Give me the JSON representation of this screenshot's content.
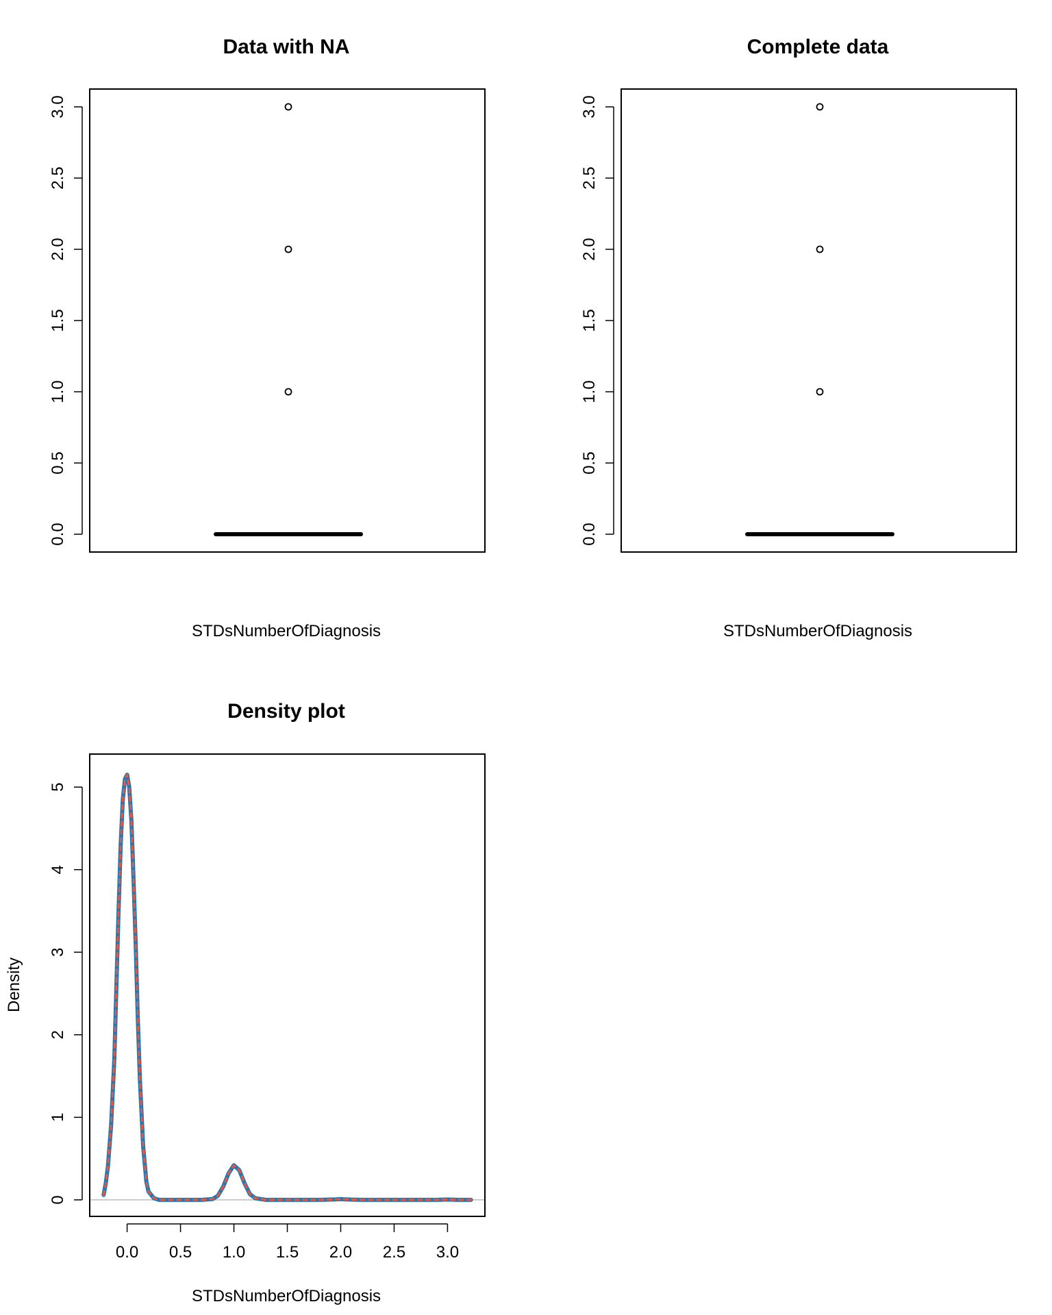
{
  "chart_data": [
    {
      "type": "box",
      "title": "Data with NA",
      "xlabel": "STDsNumberOfDiagnosis",
      "ylabel": "",
      "ylim": [
        0,
        3.12
      ],
      "yticks": [
        0,
        0.5,
        1.0,
        1.5,
        2.0,
        2.5,
        3.0
      ],
      "ytick_labels": [
        "0.0",
        "0.5",
        "1.0",
        "1.5",
        "2.0",
        "2.5",
        "3.0"
      ],
      "median": 0,
      "q1": 0,
      "q3": 0,
      "whisker_low": 0,
      "whisker_high": 0,
      "outliers": [
        1,
        2,
        3
      ]
    },
    {
      "type": "box",
      "title": "Complete data",
      "xlabel": "STDsNumberOfDiagnosis",
      "ylabel": "",
      "ylim": [
        0,
        3.12
      ],
      "yticks": [
        0,
        0.5,
        1.0,
        1.5,
        2.0,
        2.5,
        3.0
      ],
      "ytick_labels": [
        "0.0",
        "0.5",
        "1.0",
        "1.5",
        "2.0",
        "2.5",
        "3.0"
      ],
      "median": 0,
      "q1": 0,
      "q3": 0,
      "whisker_low": 0,
      "whisker_high": 0,
      "outliers": [
        1,
        2,
        3
      ]
    },
    {
      "type": "line",
      "title": "Density plot",
      "xlabel": "STDsNumberOfDiagnosis",
      "ylabel": "Density",
      "xlim": [
        -0.35,
        3.35
      ],
      "ylim": [
        -0.2,
        5.4
      ],
      "xticks": [
        0,
        0.5,
        1.0,
        1.5,
        2.0,
        2.5,
        3.0
      ],
      "xtick_labels": [
        "0.0",
        "0.5",
        "1.0",
        "1.5",
        "2.0",
        "2.5",
        "3.0"
      ],
      "yticks": [
        0,
        1,
        2,
        3,
        4,
        5
      ],
      "ytick_labels": [
        "0",
        "1",
        "2",
        "3",
        "4",
        "5"
      ],
      "series": [
        {
          "color": "#1f77b4",
          "style": "solid",
          "x": [
            -0.22,
            -0.2,
            -0.18,
            -0.15,
            -0.12,
            -0.1,
            -0.08,
            -0.06,
            -0.04,
            -0.02,
            0.0,
            0.02,
            0.04,
            0.06,
            0.08,
            0.1,
            0.12,
            0.15,
            0.18,
            0.2,
            0.25,
            0.3,
            0.5,
            0.7,
            0.8,
            0.85,
            0.9,
            0.95,
            1.0,
            1.05,
            1.1,
            1.15,
            1.2,
            1.3,
            1.5,
            1.8,
            1.95,
            2.0,
            2.05,
            2.2,
            2.5,
            2.9,
            3.0,
            3.1,
            3.22
          ],
          "y": [
            0.06,
            0.2,
            0.4,
            0.9,
            1.7,
            2.6,
            3.5,
            4.3,
            4.85,
            5.1,
            5.15,
            5.0,
            4.6,
            3.9,
            3.1,
            2.2,
            1.45,
            0.65,
            0.22,
            0.1,
            0.02,
            0.0,
            0.0,
            0.0,
            0.01,
            0.05,
            0.16,
            0.32,
            0.42,
            0.36,
            0.2,
            0.07,
            0.02,
            0.0,
            0.0,
            0.0,
            0.005,
            0.01,
            0.005,
            0.0,
            0.0,
            0.0,
            0.004,
            0.0,
            0.0
          ]
        },
        {
          "color": "#e05a47",
          "style": "dashed",
          "x": [
            -0.22,
            -0.2,
            -0.18,
            -0.15,
            -0.12,
            -0.1,
            -0.08,
            -0.06,
            -0.04,
            -0.02,
            0.0,
            0.02,
            0.04,
            0.06,
            0.08,
            0.1,
            0.12,
            0.15,
            0.18,
            0.2,
            0.25,
            0.3,
            0.5,
            0.7,
            0.8,
            0.85,
            0.9,
            0.95,
            1.0,
            1.05,
            1.1,
            1.15,
            1.2,
            1.3,
            1.5,
            1.8,
            1.95,
            2.0,
            2.05,
            2.2,
            2.5,
            2.9,
            3.0,
            3.1,
            3.22
          ],
          "y": [
            0.06,
            0.2,
            0.4,
            0.9,
            1.7,
            2.6,
            3.5,
            4.3,
            4.85,
            5.1,
            5.15,
            5.0,
            4.6,
            3.9,
            3.1,
            2.2,
            1.45,
            0.65,
            0.22,
            0.1,
            0.02,
            0.0,
            0.0,
            0.0,
            0.01,
            0.05,
            0.16,
            0.32,
            0.42,
            0.36,
            0.2,
            0.07,
            0.02,
            0.0,
            0.0,
            0.0,
            0.005,
            0.01,
            0.005,
            0.0,
            0.0,
            0.0,
            0.004,
            0.0,
            0.0
          ]
        }
      ],
      "zero_line_color": "#bdbdbd"
    }
  ]
}
